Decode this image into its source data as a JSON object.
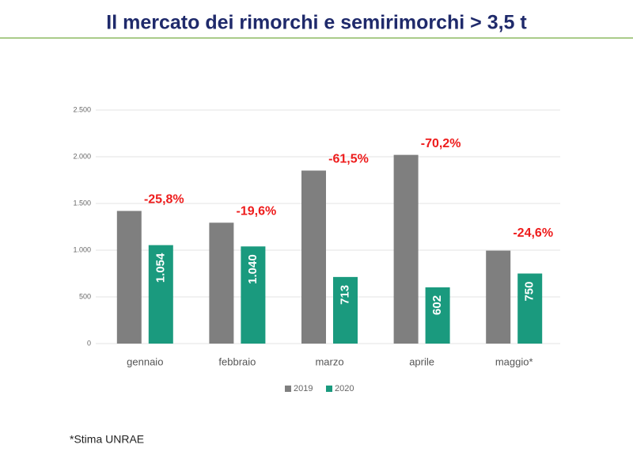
{
  "chart_data": {
    "type": "bar",
    "title": "Il mercato dei rimorchi e semirimorchi > 3,5 t",
    "categories": [
      "gennaio",
      "febbraio",
      "marzo",
      "aprile",
      "maggio*"
    ],
    "series": [
      {
        "name": "2019",
        "color": "#7f7f7f",
        "values": [
          1420,
          1294,
          1852,
          2020,
          995
        ]
      },
      {
        "name": "2020",
        "color": "#1a9a7e",
        "values": [
          1054,
          1040,
          713,
          602,
          750
        ],
        "value_labels": [
          "1.054",
          "1.040",
          "713",
          "602",
          "750"
        ]
      }
    ],
    "annotations": [
      "-25,8%",
      "-19,6%",
      "-61,5%",
      "-70,2%",
      "-24,6%"
    ],
    "ylim": [
      0,
      2500
    ],
    "yticks": [
      0,
      500,
      {
        "value": 1000,
        "label": "1.000"
      },
      {
        "value": 1500,
        "label": "1.500"
      },
      {
        "value": 2000,
        "label": "2.000"
      },
      {
        "value": 2500,
        "label": "2.500"
      }
    ],
    "grid": true,
    "legend": "bottom",
    "footnote": "*Stima UNRAE"
  }
}
